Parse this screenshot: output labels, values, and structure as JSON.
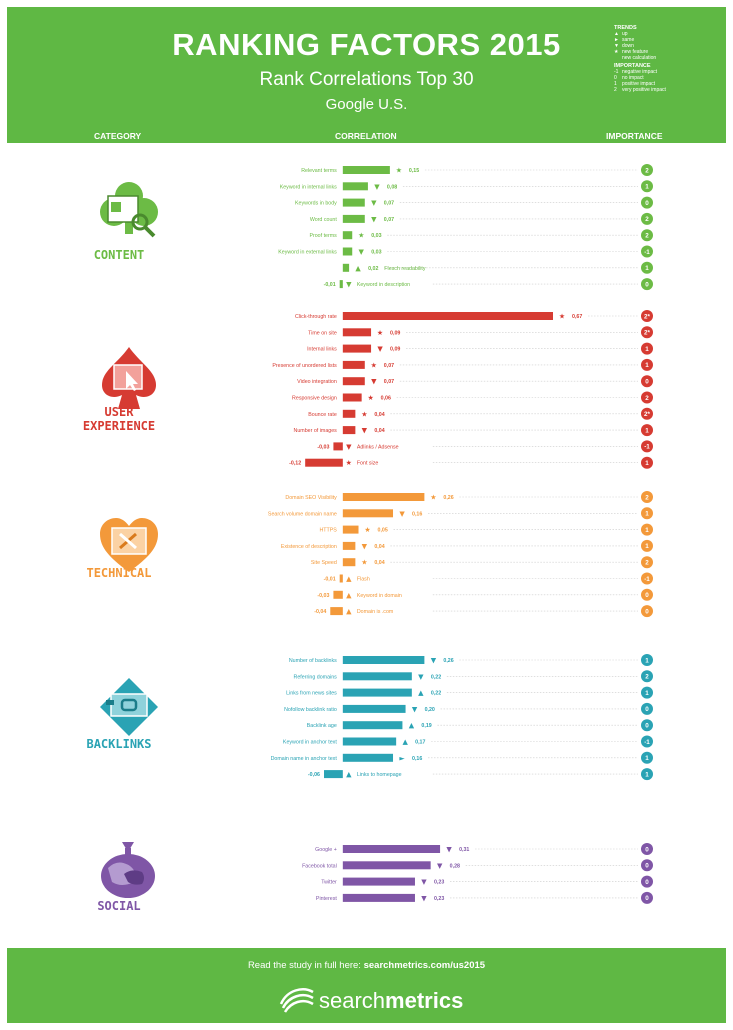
{
  "header": {
    "title": "RANKING FACTORS 2015",
    "subtitle": "Rank Correlations Top 30",
    "region": "Google U.S."
  },
  "legend": {
    "trends_heading": "TRENDS",
    "trends": [
      {
        "symbol": "▲",
        "label": "up"
      },
      {
        "symbol": "►",
        "label": "same"
      },
      {
        "symbol": "▼",
        "label": "down"
      },
      {
        "symbol": "★",
        "label": "new feature"
      },
      {
        "symbol": "",
        "label": "new calculation"
      }
    ],
    "importance_heading": "IMPORTANCE",
    "importance": [
      {
        "symbol": "-1",
        "label": "negative impact"
      },
      {
        "symbol": "0",
        "label": "no impact"
      },
      {
        "symbol": "1",
        "label": "positive impact"
      },
      {
        "symbol": "2",
        "label": "very positive impact"
      }
    ]
  },
  "columns": {
    "category": "CATEGORY",
    "correlation": "CORRELATION",
    "importance": "IMPORTANCE"
  },
  "footer": {
    "read_prefix": "Read the study in full here: ",
    "read_link": "searchmetrics.com/us2015",
    "logo_light": "search",
    "logo_bold": "metrics"
  },
  "chart_data": {
    "type": "bar",
    "scale": {
      "zero_x_fraction": 0.4677,
      "units_per_axis": 0.67
    },
    "categories": [
      {
        "name": "CONTENT",
        "color": "#6cbb45",
        "items": [
          {
            "label": "Relevant terms",
            "value": 0.15,
            "value_text": "0,15",
            "trend": "★",
            "importance": "2"
          },
          {
            "label": "Keyword in internal links",
            "value": 0.08,
            "value_text": "0,08",
            "trend": "▼",
            "importance": "1"
          },
          {
            "label": "Keywords in body",
            "value": 0.07,
            "value_text": "0,07",
            "trend": "▼",
            "importance": "0"
          },
          {
            "label": "Word count",
            "value": 0.07,
            "value_text": "0,07",
            "trend": "▼",
            "importance": "2"
          },
          {
            "label": "Proof terms",
            "value": 0.03,
            "value_text": "0,03",
            "trend": "★",
            "importance": "2"
          },
          {
            "label": "Keyword in external links",
            "value": 0.03,
            "value_text": "0,03",
            "trend": "▼",
            "importance": "-1"
          },
          {
            "label": "Flesch readability",
            "value": 0.02,
            "value_text": "0,02",
            "trend": "▲",
            "importance": "1"
          },
          {
            "label": "Keyword in description",
            "value": -0.01,
            "value_text": "-0,01",
            "trend": "▼",
            "importance": "0"
          }
        ]
      },
      {
        "name": "USER EXPERIENCE",
        "color": "#d63b32",
        "items": [
          {
            "label": "Click-through rate",
            "value": 0.67,
            "value_text": "0,67",
            "trend": "★",
            "importance": "2*"
          },
          {
            "label": "Time on site",
            "value": 0.09,
            "value_text": "0,09",
            "trend": "★",
            "importance": "2*"
          },
          {
            "label": "Internal links",
            "value": 0.09,
            "value_text": "0,09",
            "trend": "▼",
            "importance": "1"
          },
          {
            "label": "Presence of unordered lists",
            "value": 0.07,
            "value_text": "0,07",
            "trend": "★",
            "importance": "1"
          },
          {
            "label": "Video integration",
            "value": 0.07,
            "value_text": "0,07",
            "trend": "▼",
            "importance": "0"
          },
          {
            "label": "Responsive design",
            "value": 0.06,
            "value_text": "0,06",
            "trend": "★",
            "importance": "2"
          },
          {
            "label": "Bounce rate",
            "value": 0.04,
            "value_text": "0,04",
            "trend": "★",
            "importance": "2*"
          },
          {
            "label": "Number of images",
            "value": 0.04,
            "value_text": "0,04",
            "trend": "▼",
            "importance": "1"
          },
          {
            "label": "Adlinks / Adsense",
            "value": -0.03,
            "value_text": "-0,03",
            "trend": "▼",
            "importance": "-1"
          },
          {
            "label": "Font size",
            "value": -0.12,
            "value_text": "-0,12",
            "trend": "★",
            "importance": "1"
          }
        ]
      },
      {
        "name": "TECHNICAL",
        "color": "#f3993a",
        "items": [
          {
            "label": "Domain SEO Visibility",
            "value": 0.26,
            "value_text": "0,26",
            "trend": "★",
            "importance": "2"
          },
          {
            "label": "Search volume domain name",
            "value": 0.16,
            "value_text": "0,16",
            "trend": "▼",
            "importance": "1"
          },
          {
            "label": "HTTPS",
            "value": 0.05,
            "value_text": "0,05",
            "trend": "★",
            "importance": "1"
          },
          {
            "label": "Existence of description",
            "value": 0.04,
            "value_text": "0,04",
            "trend": "▼",
            "importance": "1"
          },
          {
            "label": "Site Speed",
            "value": 0.04,
            "value_text": "0,04",
            "trend": "★",
            "importance": "2"
          },
          {
            "label": "Flash",
            "value": -0.01,
            "value_text": "-0,01",
            "trend": "▲",
            "importance": "-1"
          },
          {
            "label": "Keyword in domain",
            "value": -0.03,
            "value_text": "-0,03",
            "trend": "▲",
            "importance": "0"
          },
          {
            "label": "Domain is .com",
            "value": -0.04,
            "value_text": "-0,04",
            "trend": "▲",
            "importance": "0"
          }
        ]
      },
      {
        "name": "BACKLINKS",
        "color": "#2aa3b4",
        "items": [
          {
            "label": "Number of backlinks",
            "value": 0.26,
            "value_text": "0,26",
            "trend": "▼",
            "importance": "1"
          },
          {
            "label": "Referring domains",
            "value": 0.22,
            "value_text": "0,22",
            "trend": "▼",
            "importance": "2"
          },
          {
            "label": "Links from news sites",
            "value": 0.22,
            "value_text": "0,22",
            "trend": "▲",
            "importance": "1"
          },
          {
            "label": "Nofollow backlink ratio",
            "value": 0.2,
            "value_text": "0,20",
            "trend": "▼",
            "importance": "0"
          },
          {
            "label": "Backlink age",
            "value": 0.19,
            "value_text": "0,19",
            "trend": "▲",
            "importance": "0"
          },
          {
            "label": "Keyword in anchor text",
            "value": 0.17,
            "value_text": "0,17",
            "trend": "▲",
            "importance": "-1"
          },
          {
            "label": "Domain name in anchor text",
            "value": 0.16,
            "value_text": "0,16",
            "trend": "►",
            "importance": "1"
          },
          {
            "label": "Links to homepage",
            "value": -0.06,
            "value_text": "-0,06",
            "trend": "▲",
            "importance": "1"
          }
        ]
      },
      {
        "name": "SOCIAL",
        "color": "#7f56a6",
        "items": [
          {
            "label": "Google +",
            "value": 0.31,
            "value_text": "0,31",
            "trend": "▼",
            "importance": "0"
          },
          {
            "label": "Facebook total",
            "value": 0.28,
            "value_text": "0,28",
            "trend": "▼",
            "importance": "0"
          },
          {
            "label": "Twitter",
            "value": 0.23,
            "value_text": "0,23",
            "trend": "▼",
            "importance": "0"
          },
          {
            "label": "Pinterest",
            "value": 0.23,
            "value_text": "0,23",
            "trend": "▼",
            "importance": "0"
          }
        ]
      }
    ]
  }
}
